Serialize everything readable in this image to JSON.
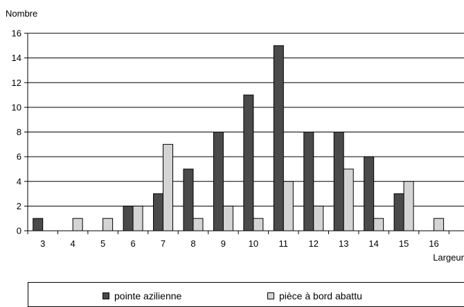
{
  "chart_data": {
    "type": "bar",
    "ylabel": "Nombre",
    "xlabel": "Largeur",
    "categories": [
      "3",
      "4",
      "5",
      "6",
      "7",
      "8",
      "9",
      "10",
      "11",
      "12",
      "13",
      "14",
      "15",
      "16"
    ],
    "series": [
      {
        "name": "pointe azilienne",
        "color": "#4a4a4a",
        "values": [
          1,
          0,
          0,
          2,
          3,
          5,
          8,
          11,
          15,
          8,
          8,
          6,
          3,
          0
        ]
      },
      {
        "name": "pièce à bord abattu",
        "color": "#d4d4d4",
        "values": [
          0,
          1,
          1,
          2,
          7,
          1,
          2,
          1,
          4,
          2,
          5,
          1,
          4,
          1
        ]
      }
    ],
    "ylim": [
      0,
      16
    ],
    "yticks": [
      "0",
      "2",
      "4",
      "6",
      "8",
      "10",
      "12",
      "14",
      "16"
    ],
    "grid": true,
    "legend_position": "bottom"
  }
}
